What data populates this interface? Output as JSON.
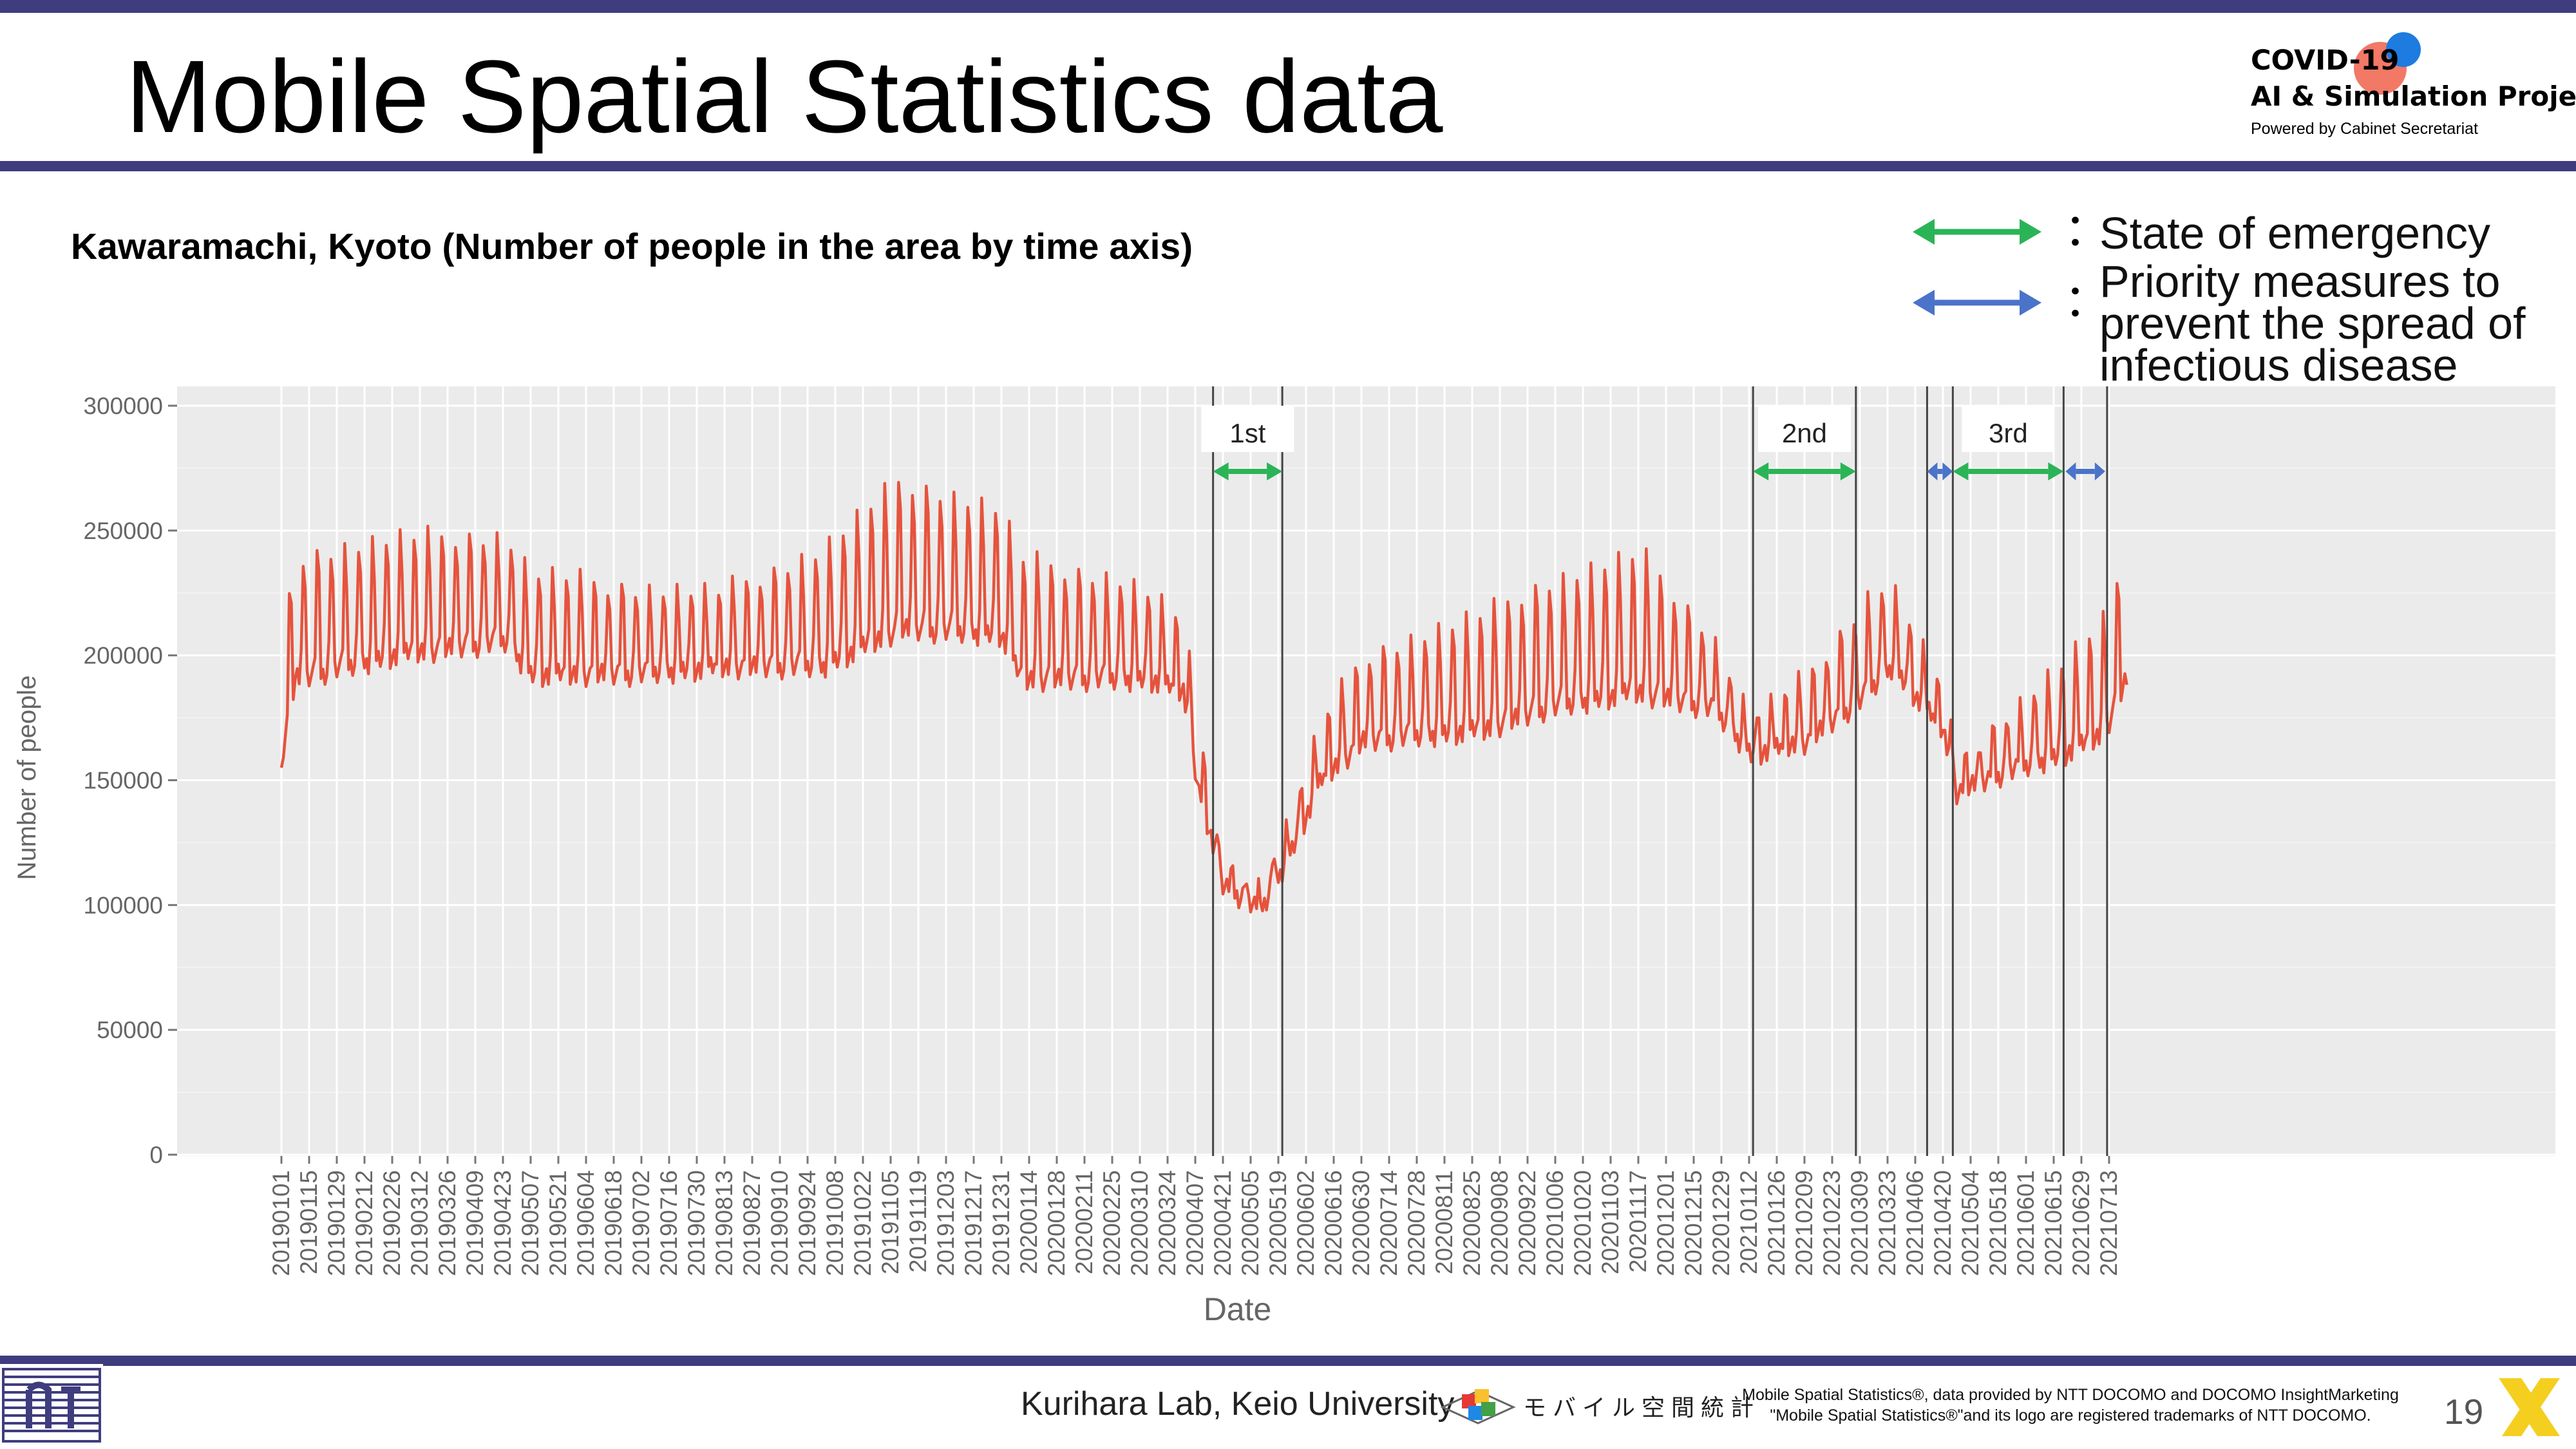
{
  "slide": {
    "title": "Mobile Spatial Statistics data",
    "subtitle": "Kawaramachi, Kyoto (Number of people in the area by time axis)",
    "page_number": "19",
    "footer_credit": "Kurihara Lab, Keio University",
    "mobile_logo_text": "モバイル空間統計",
    "legal_line1": "Mobile Spatial Statistics®, data provided by NTT DOCOMO and DOCOMO InsightMarketing",
    "legal_line2": "\"Mobile Spatial Statistics®\"and its logo are registered trademarks of NTT DOCOMO.",
    "colors": {
      "accent_bar": "#3f3d7e",
      "series": "#e5533d",
      "emergency": "#2bb457",
      "priority": "#4a73c9",
      "plot_bg": "#ebebeb"
    }
  },
  "project_logo": {
    "line1": "COVID-19",
    "line2": "AI & Simulation Project",
    "line3": "Powered by Cabinet Secretariat"
  },
  "legend": {
    "colon": "：",
    "emergency_label": "State of emergency",
    "priority_label_lines": [
      "Priority measures to",
      "prevent the spread of",
      "infectious disease"
    ]
  },
  "chart_data": {
    "type": "line",
    "title": "",
    "xlabel": "Date",
    "ylabel": "Number of people",
    "ylim": [
      0,
      300000
    ],
    "y_ticks": [
      "0",
      "50000",
      "100000",
      "150000",
      "200000",
      "250000",
      "300000"
    ],
    "x_tick_labels": [
      "20190101",
      "20190115",
      "20190129",
      "20190212",
      "20190226",
      "20190312",
      "20190326",
      "20190409",
      "20190423",
      "20190507",
      "20190521",
      "20190604",
      "20190618",
      "20190702",
      "20190716",
      "20190730",
      "20190813",
      "20190827",
      "20190910",
      "20190924",
      "20191008",
      "20191022",
      "20191105",
      "20191119",
      "20191203",
      "20191217",
      "20191231",
      "20200114",
      "20200128",
      "20200211",
      "20200225",
      "20200310",
      "20200324",
      "20200407",
      "20200421",
      "20200505",
      "20200519",
      "20200602",
      "20200616",
      "20200630",
      "20200714",
      "20200728",
      "20200811",
      "20200825",
      "20200908",
      "20200922",
      "20201006",
      "20201020",
      "20201103",
      "20201117",
      "20201201",
      "20201215",
      "20201229",
      "20210112",
      "20210126",
      "20210209",
      "20210223",
      "20210309",
      "20210323",
      "20210406",
      "20210420",
      "20210504",
      "20210518",
      "20210601",
      "20210615",
      "20210629",
      "20210713"
    ],
    "x_range_dates": [
      "2019-01-01",
      "2021-07-22"
    ],
    "grid": true,
    "weekday_base_anchors": [
      [
        "2019-01-01",
        155000
      ],
      [
        "2019-01-08",
        190000
      ],
      [
        "2019-03-01",
        200000
      ],
      [
        "2019-04-25",
        205000
      ],
      [
        "2019-05-07",
        192000
      ],
      [
        "2019-07-01",
        192000
      ],
      [
        "2019-08-10",
        195000
      ],
      [
        "2019-08-20",
        195000
      ],
      [
        "2019-10-01",
        195000
      ],
      [
        "2019-11-10",
        210000
      ],
      [
        "2019-12-31",
        208000
      ],
      [
        "2020-01-10",
        190000
      ],
      [
        "2020-02-01",
        190000
      ],
      [
        "2020-03-15",
        190000
      ],
      [
        "2020-04-01",
        185000
      ],
      [
        "2020-04-10",
        140000
      ],
      [
        "2020-04-21",
        108000
      ],
      [
        "2020-05-10",
        97000
      ],
      [
        "2020-05-25",
        120000
      ],
      [
        "2020-06-10",
        150000
      ],
      [
        "2020-07-01",
        165000
      ],
      [
        "2020-09-01",
        170000
      ],
      [
        "2020-10-01",
        178000
      ],
      [
        "2020-11-15",
        185000
      ],
      [
        "2020-12-25",
        178000
      ],
      [
        "2021-01-13",
        160000
      ],
      [
        "2021-02-10",
        165000
      ],
      [
        "2021-03-10",
        182000
      ],
      [
        "2021-03-25",
        195000
      ],
      [
        "2021-04-20",
        170000
      ],
      [
        "2021-04-27",
        145000
      ],
      [
        "2021-05-20",
        152000
      ],
      [
        "2021-06-20",
        160000
      ],
      [
        "2021-07-10",
        168000
      ],
      [
        "2021-07-22",
        190000
      ]
    ],
    "weekend_peak_anchors": [
      [
        "2019-01-01",
        50000
      ],
      [
        "2019-04-01",
        45000
      ],
      [
        "2019-08-10",
        30000
      ],
      [
        "2019-11-10",
        60000
      ],
      [
        "2019-12-31",
        50000
      ],
      [
        "2020-03-01",
        40000
      ],
      [
        "2020-04-10",
        25000
      ],
      [
        "2020-04-25",
        8000
      ],
      [
        "2020-05-25",
        15000
      ],
      [
        "2020-07-01",
        35000
      ],
      [
        "2020-09-20",
        50000
      ],
      [
        "2020-11-20",
        55000
      ],
      [
        "2021-01-13",
        15000
      ],
      [
        "2021-03-15",
        40000
      ],
      [
        "2021-04-27",
        12000
      ],
      [
        "2021-06-15",
        35000
      ],
      [
        "2021-07-22",
        50000
      ]
    ],
    "event_lines": [
      "2020-04-16",
      "2020-05-21",
      "2021-01-14",
      "2021-03-07",
      "2021-04-12",
      "2021-04-25",
      "2021-06-20",
      "2021-07-12"
    ],
    "periods": [
      {
        "label": "1st",
        "type": "emergency",
        "start": "2020-04-16",
        "end": "2020-05-21"
      },
      {
        "label": "2nd",
        "type": "emergency",
        "start": "2021-01-14",
        "end": "2021-03-07"
      },
      {
        "label": "",
        "type": "priority",
        "start": "2021-04-12",
        "end": "2021-04-25"
      },
      {
        "label": "3rd",
        "type": "emergency",
        "start": "2021-04-25",
        "end": "2021-06-20"
      },
      {
        "label": "",
        "type": "priority",
        "start": "2021-06-21",
        "end": "2021-07-11"
      }
    ]
  }
}
